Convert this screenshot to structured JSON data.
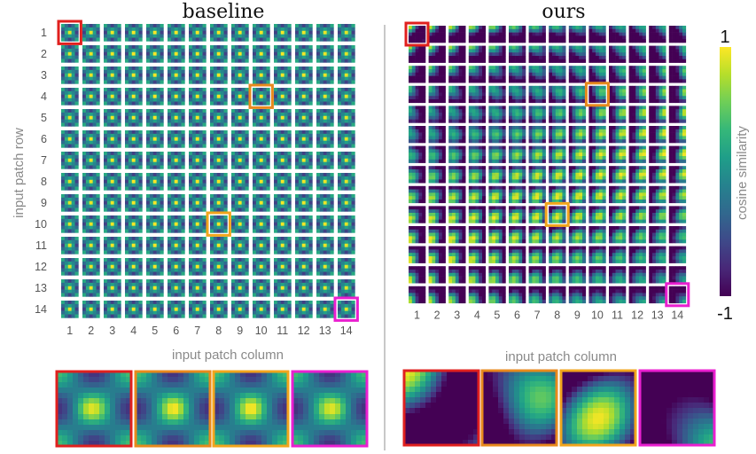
{
  "panels": [
    {
      "key": "baseline",
      "title": "baseline",
      "xlabel": "input patch column",
      "ylabel": "input patch row",
      "pattern": "baseline"
    },
    {
      "key": "ours",
      "title": "ours",
      "xlabel": "input patch column",
      "ylabel": "",
      "pattern": "ours"
    }
  ],
  "grid": {
    "rows": 14,
    "cols": 14,
    "row_ticks": [
      "1",
      "2",
      "3",
      "4",
      "5",
      "6",
      "7",
      "8",
      "9",
      "10",
      "11",
      "12",
      "13",
      "14"
    ],
    "col_ticks": [
      "1",
      "2",
      "3",
      "4",
      "5",
      "6",
      "7",
      "8",
      "9",
      "10",
      "11",
      "12",
      "13",
      "14"
    ]
  },
  "highlights": [
    {
      "row": 1,
      "col": 1,
      "color": "#e0201e"
    },
    {
      "row": 4,
      "col": 10,
      "color": "#e8891c"
    },
    {
      "row": 10,
      "col": 8,
      "color": "#f2a51c"
    },
    {
      "row": 14,
      "col": 14,
      "color": "#ea1fd0"
    }
  ],
  "colorbar": {
    "label": "cosine similarity",
    "max_label": "1",
    "min_label": "-1",
    "colormap": "viridis",
    "range": [
      -1,
      1
    ]
  },
  "colors": {
    "viridis": [
      "#440154",
      "#482878",
      "#3e4989",
      "#31688e",
      "#26828e",
      "#1f9e89",
      "#35b779",
      "#6ece58",
      "#b5de2b",
      "#fde725"
    ],
    "grid_gap": "#ffffff",
    "divider": "#c8c8c8"
  }
}
